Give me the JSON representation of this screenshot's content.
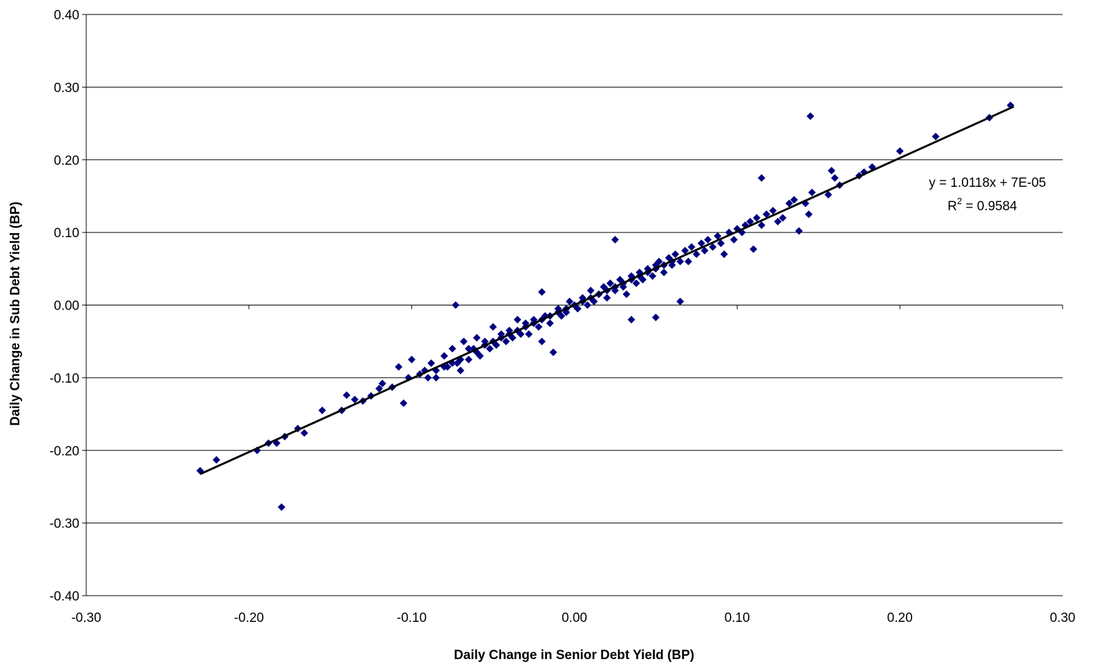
{
  "chart_data": {
    "type": "scatter",
    "title": "",
    "xlabel": "Daily Change in Senior Debt Yield (BP)",
    "ylabel": "Daily Change in Sub Debt Yield (BP)",
    "xlim": [
      -0.3,
      0.3
    ],
    "ylim": [
      -0.4,
      0.4
    ],
    "x_ticks": [
      "-0.30",
      "-0.20",
      "-0.10",
      "0.00",
      "0.10",
      "0.20",
      "0.30"
    ],
    "y_ticks": [
      "0.40",
      "0.30",
      "0.20",
      "0.10",
      "0.00",
      "-0.10",
      "-0.20",
      "-0.30",
      "-0.40"
    ],
    "grid": "horizontal",
    "legend": "none",
    "marker": "diamond",
    "marker_color": "#000080",
    "trendline_color": "#000000",
    "trendline": {
      "slope": 1.0118,
      "intercept": 7e-05,
      "x_range": [
        -0.23,
        0.27
      ]
    },
    "annotation": {
      "equation": "y = 1.0118x + 7E-05",
      "r2_prefix": "R",
      "r2_sup": "2",
      "r2_value": " = 0.9584"
    },
    "outliers": [
      [
        -0.18,
        -0.278
      ],
      [
        0.145,
        0.26
      ],
      [
        -0.073,
        0.0
      ],
      [
        0.025,
        0.09
      ],
      [
        0.065,
        0.005
      ],
      [
        0.05,
        -0.017
      ],
      [
        0.115,
        0.175
      ],
      [
        0.11,
        0.077
      ],
      [
        -0.105,
        -0.135
      ],
      [
        0.035,
        -0.02
      ],
      [
        -0.02,
        0.018
      ]
    ],
    "series": [
      {
        "points": [
          [
            -0.23,
            -0.228
          ],
          [
            -0.22,
            -0.213
          ],
          [
            -0.195,
            -0.2
          ],
          [
            -0.188,
            -0.19
          ],
          [
            -0.183,
            -0.19
          ],
          [
            -0.178,
            -0.181
          ],
          [
            -0.17,
            -0.17
          ],
          [
            -0.166,
            -0.176
          ],
          [
            -0.155,
            -0.145
          ],
          [
            -0.143,
            -0.145
          ],
          [
            -0.14,
            -0.124
          ],
          [
            -0.135,
            -0.13
          ],
          [
            -0.13,
            -0.132
          ],
          [
            -0.125,
            -0.125
          ],
          [
            -0.12,
            -0.115
          ],
          [
            -0.118,
            -0.108
          ],
          [
            -0.112,
            -0.113
          ],
          [
            -0.108,
            -0.085
          ],
          [
            -0.102,
            -0.1
          ],
          [
            -0.1,
            -0.075
          ],
          [
            -0.095,
            -0.095
          ],
          [
            -0.092,
            -0.09
          ],
          [
            -0.088,
            -0.08
          ],
          [
            -0.085,
            -0.1
          ],
          [
            -0.08,
            -0.07
          ],
          [
            -0.078,
            -0.085
          ],
          [
            -0.075,
            -0.06
          ],
          [
            -0.072,
            -0.08
          ],
          [
            -0.07,
            -0.09
          ],
          [
            -0.068,
            -0.05
          ],
          [
            -0.065,
            -0.075
          ],
          [
            -0.062,
            -0.06
          ],
          [
            -0.06,
            -0.045
          ],
          [
            -0.058,
            -0.07
          ],
          [
            -0.055,
            -0.05
          ],
          [
            -0.052,
            -0.06
          ],
          [
            -0.05,
            -0.03
          ],
          [
            -0.048,
            -0.055
          ],
          [
            -0.045,
            -0.04
          ],
          [
            -0.042,
            -0.05
          ],
          [
            -0.04,
            -0.035
          ],
          [
            -0.038,
            -0.045
          ],
          [
            -0.035,
            -0.02
          ],
          [
            -0.033,
            -0.04
          ],
          [
            -0.03,
            -0.025
          ],
          [
            -0.028,
            -0.04
          ],
          [
            -0.025,
            -0.02
          ],
          [
            -0.022,
            -0.03
          ],
          [
            -0.02,
            -0.05
          ],
          [
            -0.018,
            -0.015
          ],
          [
            -0.015,
            -0.025
          ],
          [
            -0.013,
            -0.065
          ],
          [
            -0.01,
            -0.005
          ],
          [
            -0.008,
            -0.015
          ],
          [
            -0.005,
            -0.01
          ],
          [
            -0.003,
            0.005
          ],
          [
            0.0,
            0.0
          ],
          [
            0.002,
            -0.005
          ],
          [
            0.005,
            0.01
          ],
          [
            0.008,
            0.0
          ],
          [
            0.01,
            0.02
          ],
          [
            0.012,
            0.005
          ],
          [
            0.015,
            0.015
          ],
          [
            0.018,
            0.025
          ],
          [
            0.02,
            0.01
          ],
          [
            0.022,
            0.03
          ],
          [
            0.025,
            0.02
          ],
          [
            0.028,
            0.035
          ],
          [
            0.03,
            0.025
          ],
          [
            0.032,
            0.015
          ],
          [
            0.035,
            0.04
          ],
          [
            0.038,
            0.03
          ],
          [
            0.04,
            0.045
          ],
          [
            0.042,
            0.035
          ],
          [
            0.045,
            0.05
          ],
          [
            0.048,
            0.04
          ],
          [
            0.05,
            0.055
          ],
          [
            0.052,
            0.06
          ],
          [
            0.055,
            0.045
          ],
          [
            0.058,
            0.065
          ],
          [
            0.06,
            0.055
          ],
          [
            0.062,
            0.07
          ],
          [
            0.065,
            0.06
          ],
          [
            0.068,
            0.075
          ],
          [
            0.07,
            0.06
          ],
          [
            0.072,
            0.08
          ],
          [
            0.075,
            0.07
          ],
          [
            0.078,
            0.085
          ],
          [
            0.08,
            0.075
          ],
          [
            0.082,
            0.09
          ],
          [
            0.085,
            0.08
          ],
          [
            0.088,
            0.095
          ],
          [
            0.09,
            0.085
          ],
          [
            0.092,
            0.07
          ],
          [
            0.095,
            0.1
          ],
          [
            0.098,
            0.09
          ],
          [
            0.1,
            0.105
          ],
          [
            0.103,
            0.1
          ],
          [
            0.105,
            0.11
          ],
          [
            0.108,
            0.115
          ],
          [
            0.112,
            0.12
          ],
          [
            0.115,
            0.11
          ],
          [
            0.118,
            0.125
          ],
          [
            0.122,
            0.13
          ],
          [
            0.125,
            0.115
          ],
          [
            0.128,
            0.12
          ],
          [
            0.132,
            0.14
          ],
          [
            0.135,
            0.145
          ],
          [
            0.138,
            0.102
          ],
          [
            0.142,
            0.14
          ],
          [
            0.144,
            0.125
          ],
          [
            0.146,
            0.155
          ],
          [
            0.156,
            0.152
          ],
          [
            0.158,
            0.185
          ],
          [
            0.16,
            0.175
          ],
          [
            0.163,
            0.165
          ],
          [
            0.175,
            0.178
          ],
          [
            0.178,
            0.183
          ],
          [
            0.183,
            0.19
          ],
          [
            0.2,
            0.212
          ],
          [
            0.222,
            0.232
          ],
          [
            0.255,
            0.258
          ],
          [
            0.268,
            0.275
          ],
          [
            -0.09,
            -0.1
          ],
          [
            -0.085,
            -0.09
          ],
          [
            -0.08,
            -0.085
          ],
          [
            -0.075,
            -0.08
          ],
          [
            -0.07,
            -0.075
          ],
          [
            -0.065,
            -0.06
          ],
          [
            -0.06,
            -0.065
          ],
          [
            -0.055,
            -0.055
          ],
          [
            -0.05,
            -0.05
          ],
          [
            -0.045,
            -0.045
          ],
          [
            -0.04,
            -0.04
          ],
          [
            -0.035,
            -0.035
          ],
          [
            -0.03,
            -0.03
          ],
          [
            -0.025,
            -0.025
          ],
          [
            -0.02,
            -0.02
          ],
          [
            -0.015,
            -0.015
          ],
          [
            -0.01,
            -0.01
          ],
          [
            -0.005,
            -0.005
          ],
          [
            0.005,
            0.005
          ],
          [
            0.01,
            0.01
          ],
          [
            0.015,
            0.015
          ],
          [
            0.02,
            0.02
          ],
          [
            0.025,
            0.025
          ],
          [
            0.03,
            0.03
          ],
          [
            0.035,
            0.035
          ],
          [
            0.04,
            0.04
          ],
          [
            0.045,
            0.045
          ],
          [
            0.05,
            0.05
          ],
          [
            0.055,
            0.055
          ],
          [
            0.06,
            0.06
          ]
        ]
      }
    ]
  }
}
